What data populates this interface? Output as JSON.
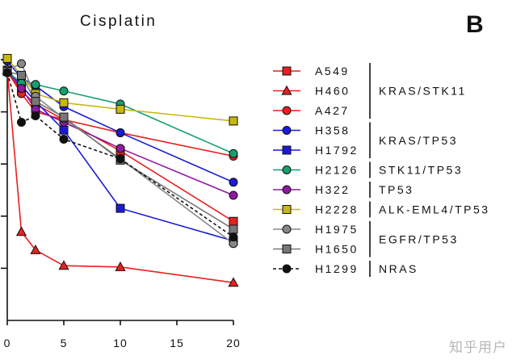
{
  "chart_data": {
    "type": "line",
    "title": "Cisplatin",
    "panel_label": "B",
    "x": [
      0,
      1.25,
      2.5,
      5,
      10,
      20
    ],
    "x_ticks": [
      0,
      5,
      10,
      15,
      20
    ],
    "xlim": [
      0,
      20
    ],
    "ylim": [
      0,
      1.0
    ],
    "xlabel": "",
    "ylabel": "",
    "series": [
      {
        "name": "A549",
        "color": "#e8201f",
        "marker": "square",
        "dashed": false,
        "values": [
          0.955,
          0.88,
          0.83,
          0.77,
          0.65,
          0.38
        ]
      },
      {
        "name": "H460",
        "color": "#e8201f",
        "marker": "triangle",
        "dashed": false,
        "values": [
          0.96,
          0.34,
          0.27,
          0.21,
          0.205,
          0.145
        ]
      },
      {
        "name": "A427",
        "color": "#e8201f",
        "marker": "circle",
        "dashed": false,
        "values": [
          0.955,
          0.87,
          0.8,
          0.77,
          0.72,
          0.63
        ]
      },
      {
        "name": "H358",
        "color": "#1a1ad6",
        "marker": "circle",
        "dashed": false,
        "values": [
          0.995,
          0.93,
          0.9,
          0.82,
          0.72,
          0.53
        ]
      },
      {
        "name": "H1792",
        "color": "#1a1ad6",
        "marker": "square",
        "dashed": false,
        "values": [
          0.96,
          0.9,
          0.84,
          0.73,
          0.43,
          0.305
        ]
      },
      {
        "name": "H2126",
        "color": "#13a06f",
        "marker": "circle",
        "dashed": false,
        "values": [
          0.955,
          0.91,
          0.905,
          0.88,
          0.83,
          0.64
        ]
      },
      {
        "name": "H322",
        "color": "#8e1aa0",
        "marker": "circle",
        "dashed": false,
        "values": [
          0.955,
          0.89,
          0.81,
          0.76,
          0.66,
          0.48
        ]
      },
      {
        "name": "H2228",
        "color": "#c6b80d",
        "marker": "square",
        "dashed": false,
        "values": [
          1.005,
          0.94,
          0.87,
          0.835,
          0.81,
          0.765
        ]
      },
      {
        "name": "H1975",
        "color": "#888888",
        "marker": "circle",
        "dashed": false,
        "values": [
          0.96,
          0.985,
          0.86,
          0.775,
          0.62,
          0.295
        ]
      },
      {
        "name": "H1650",
        "color": "#777777",
        "marker": "square",
        "dashed": false,
        "values": [
          0.955,
          0.94,
          0.84,
          0.78,
          0.615,
          0.35
        ]
      },
      {
        "name": "H1299",
        "color": "#111111",
        "marker": "circle",
        "dashed": true,
        "values": [
          0.95,
          0.76,
          0.785,
          0.695,
          0.62,
          0.32
        ]
      }
    ],
    "groups": [
      {
        "label": "KRAS/STK11",
        "members": [
          "A549",
          "H460",
          "A427"
        ]
      },
      {
        "label": "KRAS/TP53",
        "members": [
          "H358",
          "H1792"
        ]
      },
      {
        "label": "STK11/TP53",
        "members": [
          "H2126"
        ]
      },
      {
        "label": "TP53",
        "members": [
          "H322"
        ]
      },
      {
        "label": "ALK-EML4/TP53",
        "members": [
          "H2228"
        ]
      },
      {
        "label": "EGFR/TP53",
        "members": [
          "H1975",
          "H1650"
        ]
      },
      {
        "label": "NRAS",
        "members": [
          "H1299"
        ]
      }
    ],
    "legend_position": "right",
    "grid": false
  },
  "watermark": "知乎用户"
}
